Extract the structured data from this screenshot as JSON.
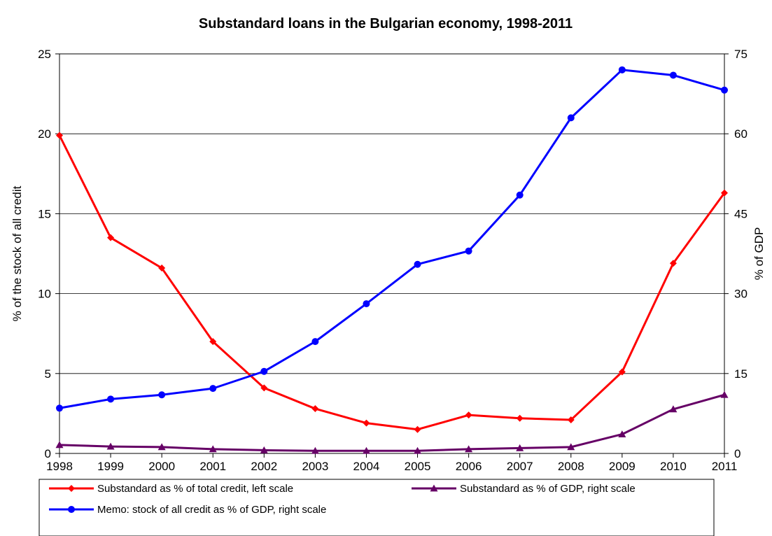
{
  "chart_data": {
    "type": "line",
    "title": "Substandard loans in the Bulgarian economy, 1998-2011",
    "xlabel": "",
    "ylabel_left": "% of the stock of all credit",
    "ylabel_right": "% of GDP",
    "x": [
      "1998",
      "1999",
      "2000",
      "2001",
      "2002",
      "2003",
      "2004",
      "2005",
      "2006",
      "2007",
      "2008",
      "2009",
      "2010",
      "2011"
    ],
    "ylim_left": [
      0,
      25
    ],
    "ylim_right": [
      0,
      75
    ],
    "yticks_left": [
      "0",
      "5",
      "10",
      "15",
      "20",
      "25"
    ],
    "yticks_right": [
      "0",
      "15",
      "30",
      "45",
      "60",
      "75"
    ],
    "grid": "horizontal major gridlines",
    "legend_position": "bottom",
    "series": [
      {
        "name": "Substandard as % of total credit, left scale",
        "axis": "left",
        "marker": "diamond",
        "color": "#ff0000",
        "values": [
          19.9,
          13.5,
          11.6,
          7.0,
          4.1,
          2.8,
          1.9,
          1.5,
          2.4,
          2.2,
          2.1,
          5.1,
          11.9,
          16.3
        ]
      },
      {
        "name": "Substandard as % of GDP, right scale",
        "axis": "right",
        "marker": "triangle",
        "color": "#660066",
        "values": [
          1.6,
          1.3,
          1.2,
          0.8,
          0.6,
          0.5,
          0.5,
          0.5,
          0.8,
          1.0,
          1.2,
          3.6,
          8.3,
          11.0
        ]
      },
      {
        "name": "Memo: stock of all credit as % of GDP, right scale",
        "axis": "right",
        "marker": "circle",
        "color": "#0000ff",
        "values": [
          8.5,
          10.2,
          11.0,
          12.2,
          15.4,
          21.0,
          28.1,
          35.5,
          38.0,
          48.5,
          63.0,
          72.0,
          71.0,
          68.2
        ]
      }
    ]
  }
}
